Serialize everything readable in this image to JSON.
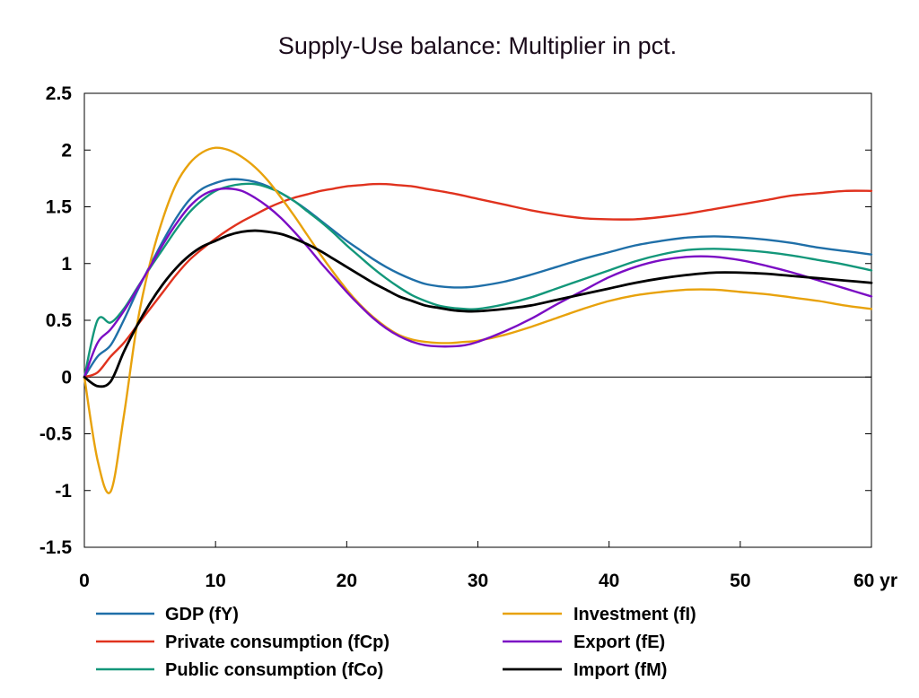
{
  "chart_data": {
    "type": "line",
    "title": "Supply-Use balance: Multiplier in pct.",
    "xlabel": "",
    "ylabel": "",
    "xlim": [
      0,
      60
    ],
    "ylim": [
      -1.5,
      2.5
    ],
    "x_ticks": [
      {
        "value": 0,
        "label": "0"
      },
      {
        "value": 10,
        "label": "10"
      },
      {
        "value": 20,
        "label": "20"
      },
      {
        "value": 30,
        "label": "30"
      },
      {
        "value": 40,
        "label": "40"
      },
      {
        "value": 50,
        "label": "50"
      },
      {
        "value": 60,
        "label": "60 yr"
      }
    ],
    "y_ticks": [
      {
        "value": 2.5,
        "label": "2.5"
      },
      {
        "value": 2,
        "label": "2"
      },
      {
        "value": 1.5,
        "label": "1.5"
      },
      {
        "value": 1,
        "label": "1"
      },
      {
        "value": 0.5,
        "label": "0.5"
      },
      {
        "value": 0,
        "label": "0"
      },
      {
        "value": -0.5,
        "label": "-0.5"
      },
      {
        "value": -1,
        "label": "-1"
      },
      {
        "value": -1.5,
        "label": "-1.5"
      }
    ],
    "zero_line": true,
    "grid": false,
    "legend_position": "bottom",
    "series": [
      {
        "name": "GDP (fY)",
        "color": "#1f6fa8",
        "points": [
          [
            0,
            0
          ],
          [
            1,
            0.18
          ],
          [
            2,
            0.28
          ],
          [
            3,
            0.5
          ],
          [
            4,
            0.75
          ],
          [
            5,
            0.98
          ],
          [
            6,
            1.2
          ],
          [
            7,
            1.4
          ],
          [
            8,
            1.56
          ],
          [
            9,
            1.66
          ],
          [
            10,
            1.71
          ],
          [
            11,
            1.74
          ],
          [
            12,
            1.74
          ],
          [
            13,
            1.72
          ],
          [
            14,
            1.68
          ],
          [
            15,
            1.62
          ],
          [
            16,
            1.55
          ],
          [
            17,
            1.47
          ],
          [
            18,
            1.38
          ],
          [
            19,
            1.29
          ],
          [
            20,
            1.2
          ],
          [
            21,
            1.12
          ],
          [
            22,
            1.04
          ],
          [
            23,
            0.97
          ],
          [
            24,
            0.91
          ],
          [
            25,
            0.86
          ],
          [
            26,
            0.82
          ],
          [
            27,
            0.8
          ],
          [
            28,
            0.79
          ],
          [
            29,
            0.79
          ],
          [
            30,
            0.8
          ],
          [
            32,
            0.84
          ],
          [
            34,
            0.9
          ],
          [
            36,
            0.97
          ],
          [
            38,
            1.04
          ],
          [
            40,
            1.1
          ],
          [
            42,
            1.16
          ],
          [
            44,
            1.2
          ],
          [
            46,
            1.23
          ],
          [
            48,
            1.24
          ],
          [
            50,
            1.23
          ],
          [
            52,
            1.21
          ],
          [
            54,
            1.18
          ],
          [
            56,
            1.14
          ],
          [
            58,
            1.11
          ],
          [
            60,
            1.08
          ]
        ]
      },
      {
        "name": "Private consumption (fCp)",
        "color": "#e0321e",
        "points": [
          [
            0,
            0
          ],
          [
            1,
            0.04
          ],
          [
            2,
            0.18
          ],
          [
            3,
            0.3
          ],
          [
            4,
            0.45
          ],
          [
            5,
            0.6
          ],
          [
            6,
            0.75
          ],
          [
            7,
            0.9
          ],
          [
            8,
            1.03
          ],
          [
            9,
            1.13
          ],
          [
            10,
            1.22
          ],
          [
            11,
            1.3
          ],
          [
            12,
            1.37
          ],
          [
            13,
            1.43
          ],
          [
            14,
            1.49
          ],
          [
            15,
            1.54
          ],
          [
            16,
            1.58
          ],
          [
            17,
            1.61
          ],
          [
            18,
            1.64
          ],
          [
            19,
            1.66
          ],
          [
            20,
            1.68
          ],
          [
            21,
            1.69
          ],
          [
            22,
            1.7
          ],
          [
            23,
            1.7
          ],
          [
            24,
            1.69
          ],
          [
            25,
            1.68
          ],
          [
            26,
            1.66
          ],
          [
            28,
            1.62
          ],
          [
            30,
            1.57
          ],
          [
            32,
            1.52
          ],
          [
            34,
            1.47
          ],
          [
            36,
            1.43
          ],
          [
            38,
            1.4
          ],
          [
            40,
            1.39
          ],
          [
            42,
            1.39
          ],
          [
            44,
            1.41
          ],
          [
            46,
            1.44
          ],
          [
            48,
            1.48
          ],
          [
            50,
            1.52
          ],
          [
            52,
            1.56
          ],
          [
            54,
            1.6
          ],
          [
            56,
            1.62
          ],
          [
            58,
            1.64
          ],
          [
            60,
            1.64
          ]
        ]
      },
      {
        "name": "Public consumption (fCo)",
        "color": "#13977a",
        "points": [
          [
            0,
            0
          ],
          [
            1,
            0.5
          ],
          [
            2,
            0.48
          ],
          [
            3,
            0.6
          ],
          [
            4,
            0.78
          ],
          [
            5,
            0.96
          ],
          [
            6,
            1.13
          ],
          [
            7,
            1.3
          ],
          [
            8,
            1.45
          ],
          [
            9,
            1.56
          ],
          [
            10,
            1.64
          ],
          [
            11,
            1.68
          ],
          [
            12,
            1.7
          ],
          [
            13,
            1.7
          ],
          [
            14,
            1.67
          ],
          [
            15,
            1.62
          ],
          [
            16,
            1.55
          ],
          [
            17,
            1.46
          ],
          [
            18,
            1.37
          ],
          [
            19,
            1.27
          ],
          [
            20,
            1.16
          ],
          [
            21,
            1.06
          ],
          [
            22,
            0.96
          ],
          [
            23,
            0.87
          ],
          [
            24,
            0.79
          ],
          [
            25,
            0.72
          ],
          [
            26,
            0.67
          ],
          [
            27,
            0.63
          ],
          [
            28,
            0.61
          ],
          [
            29,
            0.6
          ],
          [
            30,
            0.6
          ],
          [
            32,
            0.64
          ],
          [
            34,
            0.7
          ],
          [
            36,
            0.78
          ],
          [
            38,
            0.86
          ],
          [
            40,
            0.94
          ],
          [
            42,
            1.02
          ],
          [
            44,
            1.08
          ],
          [
            46,
            1.12
          ],
          [
            48,
            1.13
          ],
          [
            50,
            1.12
          ],
          [
            52,
            1.1
          ],
          [
            54,
            1.07
          ],
          [
            56,
            1.03
          ],
          [
            58,
            0.99
          ],
          [
            60,
            0.94
          ]
        ]
      },
      {
        "name": "Investment (fI)",
        "color": "#e8a20c",
        "points": [
          [
            0,
            0
          ],
          [
            1,
            -0.73
          ],
          [
            2,
            -1.01
          ],
          [
            3,
            -0.35
          ],
          [
            4,
            0.45
          ],
          [
            5,
            1.0
          ],
          [
            6,
            1.4
          ],
          [
            7,
            1.7
          ],
          [
            8,
            1.88
          ],
          [
            9,
            1.98
          ],
          [
            10,
            2.02
          ],
          [
            11,
            2.0
          ],
          [
            12,
            1.94
          ],
          [
            13,
            1.85
          ],
          [
            14,
            1.73
          ],
          [
            15,
            1.58
          ],
          [
            16,
            1.42
          ],
          [
            17,
            1.25
          ],
          [
            18,
            1.08
          ],
          [
            19,
            0.92
          ],
          [
            20,
            0.77
          ],
          [
            21,
            0.64
          ],
          [
            22,
            0.53
          ],
          [
            23,
            0.44
          ],
          [
            24,
            0.37
          ],
          [
            25,
            0.33
          ],
          [
            26,
            0.31
          ],
          [
            27,
            0.3
          ],
          [
            28,
            0.3
          ],
          [
            29,
            0.31
          ],
          [
            30,
            0.32
          ],
          [
            32,
            0.37
          ],
          [
            34,
            0.44
          ],
          [
            36,
            0.52
          ],
          [
            38,
            0.6
          ],
          [
            40,
            0.67
          ],
          [
            42,
            0.72
          ],
          [
            44,
            0.75
          ],
          [
            46,
            0.77
          ],
          [
            48,
            0.77
          ],
          [
            50,
            0.75
          ],
          [
            52,
            0.73
          ],
          [
            54,
            0.7
          ],
          [
            56,
            0.67
          ],
          [
            58,
            0.63
          ],
          [
            60,
            0.6
          ]
        ]
      },
      {
        "name": "Export (fE)",
        "color": "#7b0dc4",
        "points": [
          [
            0,
            0
          ],
          [
            1,
            0.3
          ],
          [
            2,
            0.42
          ],
          [
            3,
            0.58
          ],
          [
            4,
            0.77
          ],
          [
            5,
            0.97
          ],
          [
            6,
            1.17
          ],
          [
            7,
            1.35
          ],
          [
            8,
            1.5
          ],
          [
            9,
            1.6
          ],
          [
            10,
            1.65
          ],
          [
            11,
            1.66
          ],
          [
            12,
            1.64
          ],
          [
            13,
            1.58
          ],
          [
            14,
            1.5
          ],
          [
            15,
            1.4
          ],
          [
            16,
            1.28
          ],
          [
            17,
            1.15
          ],
          [
            18,
            1.01
          ],
          [
            19,
            0.88
          ],
          [
            20,
            0.75
          ],
          [
            21,
            0.63
          ],
          [
            22,
            0.52
          ],
          [
            23,
            0.43
          ],
          [
            24,
            0.36
          ],
          [
            25,
            0.31
          ],
          [
            26,
            0.28
          ],
          [
            27,
            0.27
          ],
          [
            28,
            0.27
          ],
          [
            29,
            0.28
          ],
          [
            30,
            0.31
          ],
          [
            32,
            0.4
          ],
          [
            34,
            0.51
          ],
          [
            36,
            0.64
          ],
          [
            38,
            0.76
          ],
          [
            40,
            0.88
          ],
          [
            42,
            0.97
          ],
          [
            44,
            1.03
          ],
          [
            46,
            1.06
          ],
          [
            48,
            1.06
          ],
          [
            50,
            1.03
          ],
          [
            52,
            0.98
          ],
          [
            54,
            0.92
          ],
          [
            56,
            0.85
          ],
          [
            58,
            0.78
          ],
          [
            60,
            0.71
          ]
        ]
      },
      {
        "name": "Import (fM)",
        "color": "#000000",
        "points": [
          [
            0,
            0
          ],
          [
            1,
            -0.08
          ],
          [
            2,
            -0.04
          ],
          [
            3,
            0.22
          ],
          [
            4,
            0.45
          ],
          [
            5,
            0.65
          ],
          [
            6,
            0.82
          ],
          [
            7,
            0.96
          ],
          [
            8,
            1.07
          ],
          [
            9,
            1.15
          ],
          [
            10,
            1.2
          ],
          [
            11,
            1.25
          ],
          [
            12,
            1.28
          ],
          [
            13,
            1.29
          ],
          [
            14,
            1.28
          ],
          [
            15,
            1.26
          ],
          [
            16,
            1.22
          ],
          [
            17,
            1.17
          ],
          [
            18,
            1.11
          ],
          [
            19,
            1.04
          ],
          [
            20,
            0.97
          ],
          [
            21,
            0.9
          ],
          [
            22,
            0.83
          ],
          [
            23,
            0.77
          ],
          [
            24,
            0.71
          ],
          [
            25,
            0.67
          ],
          [
            26,
            0.63
          ],
          [
            27,
            0.61
          ],
          [
            28,
            0.59
          ],
          [
            29,
            0.58
          ],
          [
            30,
            0.58
          ],
          [
            32,
            0.6
          ],
          [
            34,
            0.63
          ],
          [
            36,
            0.68
          ],
          [
            38,
            0.73
          ],
          [
            40,
            0.78
          ],
          [
            42,
            0.83
          ],
          [
            44,
            0.87
          ],
          [
            46,
            0.9
          ],
          [
            48,
            0.92
          ],
          [
            50,
            0.92
          ],
          [
            52,
            0.91
          ],
          [
            54,
            0.89
          ],
          [
            56,
            0.87
          ],
          [
            58,
            0.85
          ],
          [
            60,
            0.83
          ]
        ]
      }
    ],
    "legend_columns": [
      [
        "GDP (fY)",
        "Private consumption (fCp)",
        "Public consumption (fCo)"
      ],
      [
        "Investment (fI)",
        "Export (fE)",
        "Import (fM)"
      ]
    ]
  }
}
